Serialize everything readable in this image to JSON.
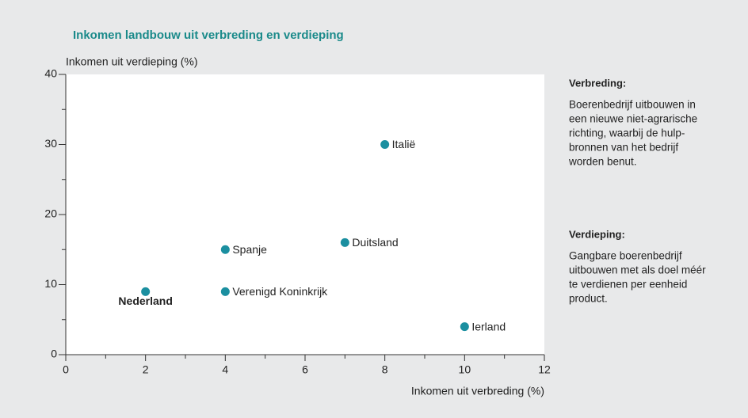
{
  "chart_data": {
    "type": "scatter",
    "title": "Inkomen landbouw uit verbreding en verdieping",
    "x_label": "Inkomen uit verbreding (%)",
    "y_label": "Inkomen uit verdieping (%)",
    "labels": [
      "Nederland",
      "Spanje",
      "Verenigd Koninkrijk",
      "Duitsland",
      "Italië",
      "Ierland"
    ],
    "x": [
      2,
      4,
      4,
      7,
      8,
      10
    ],
    "values": [
      9,
      15,
      9,
      16,
      30,
      4
    ],
    "highlight": 0,
    "color": "#1b8fa0",
    "xlim": [
      0,
      12
    ],
    "xticks": [
      0,
      2,
      4,
      6,
      8,
      10,
      12
    ],
    "xminorticks": [
      1,
      3,
      5,
      7,
      9,
      11
    ],
    "ylim": [
      0,
      40
    ],
    "yticks": [
      0,
      10,
      20,
      30,
      40
    ],
    "yminorticks": [
      5,
      15,
      25,
      35
    ]
  },
  "side_notes": [
    {
      "heading": "Verbreding:",
      "lines": [
        "Boerenbedrijf uitbouwen in",
        "een nieuwe niet-agrarische",
        "richting, waarbij de hulp-",
        "bronnen van het bedrijf",
        "worden benut."
      ]
    },
    {
      "heading": "Verdieping:",
      "lines": [
        "Gangbare boerenbedrijf",
        "uitbouwen met als doel méér",
        "te verdienen per eenheid",
        "product."
      ]
    }
  ]
}
